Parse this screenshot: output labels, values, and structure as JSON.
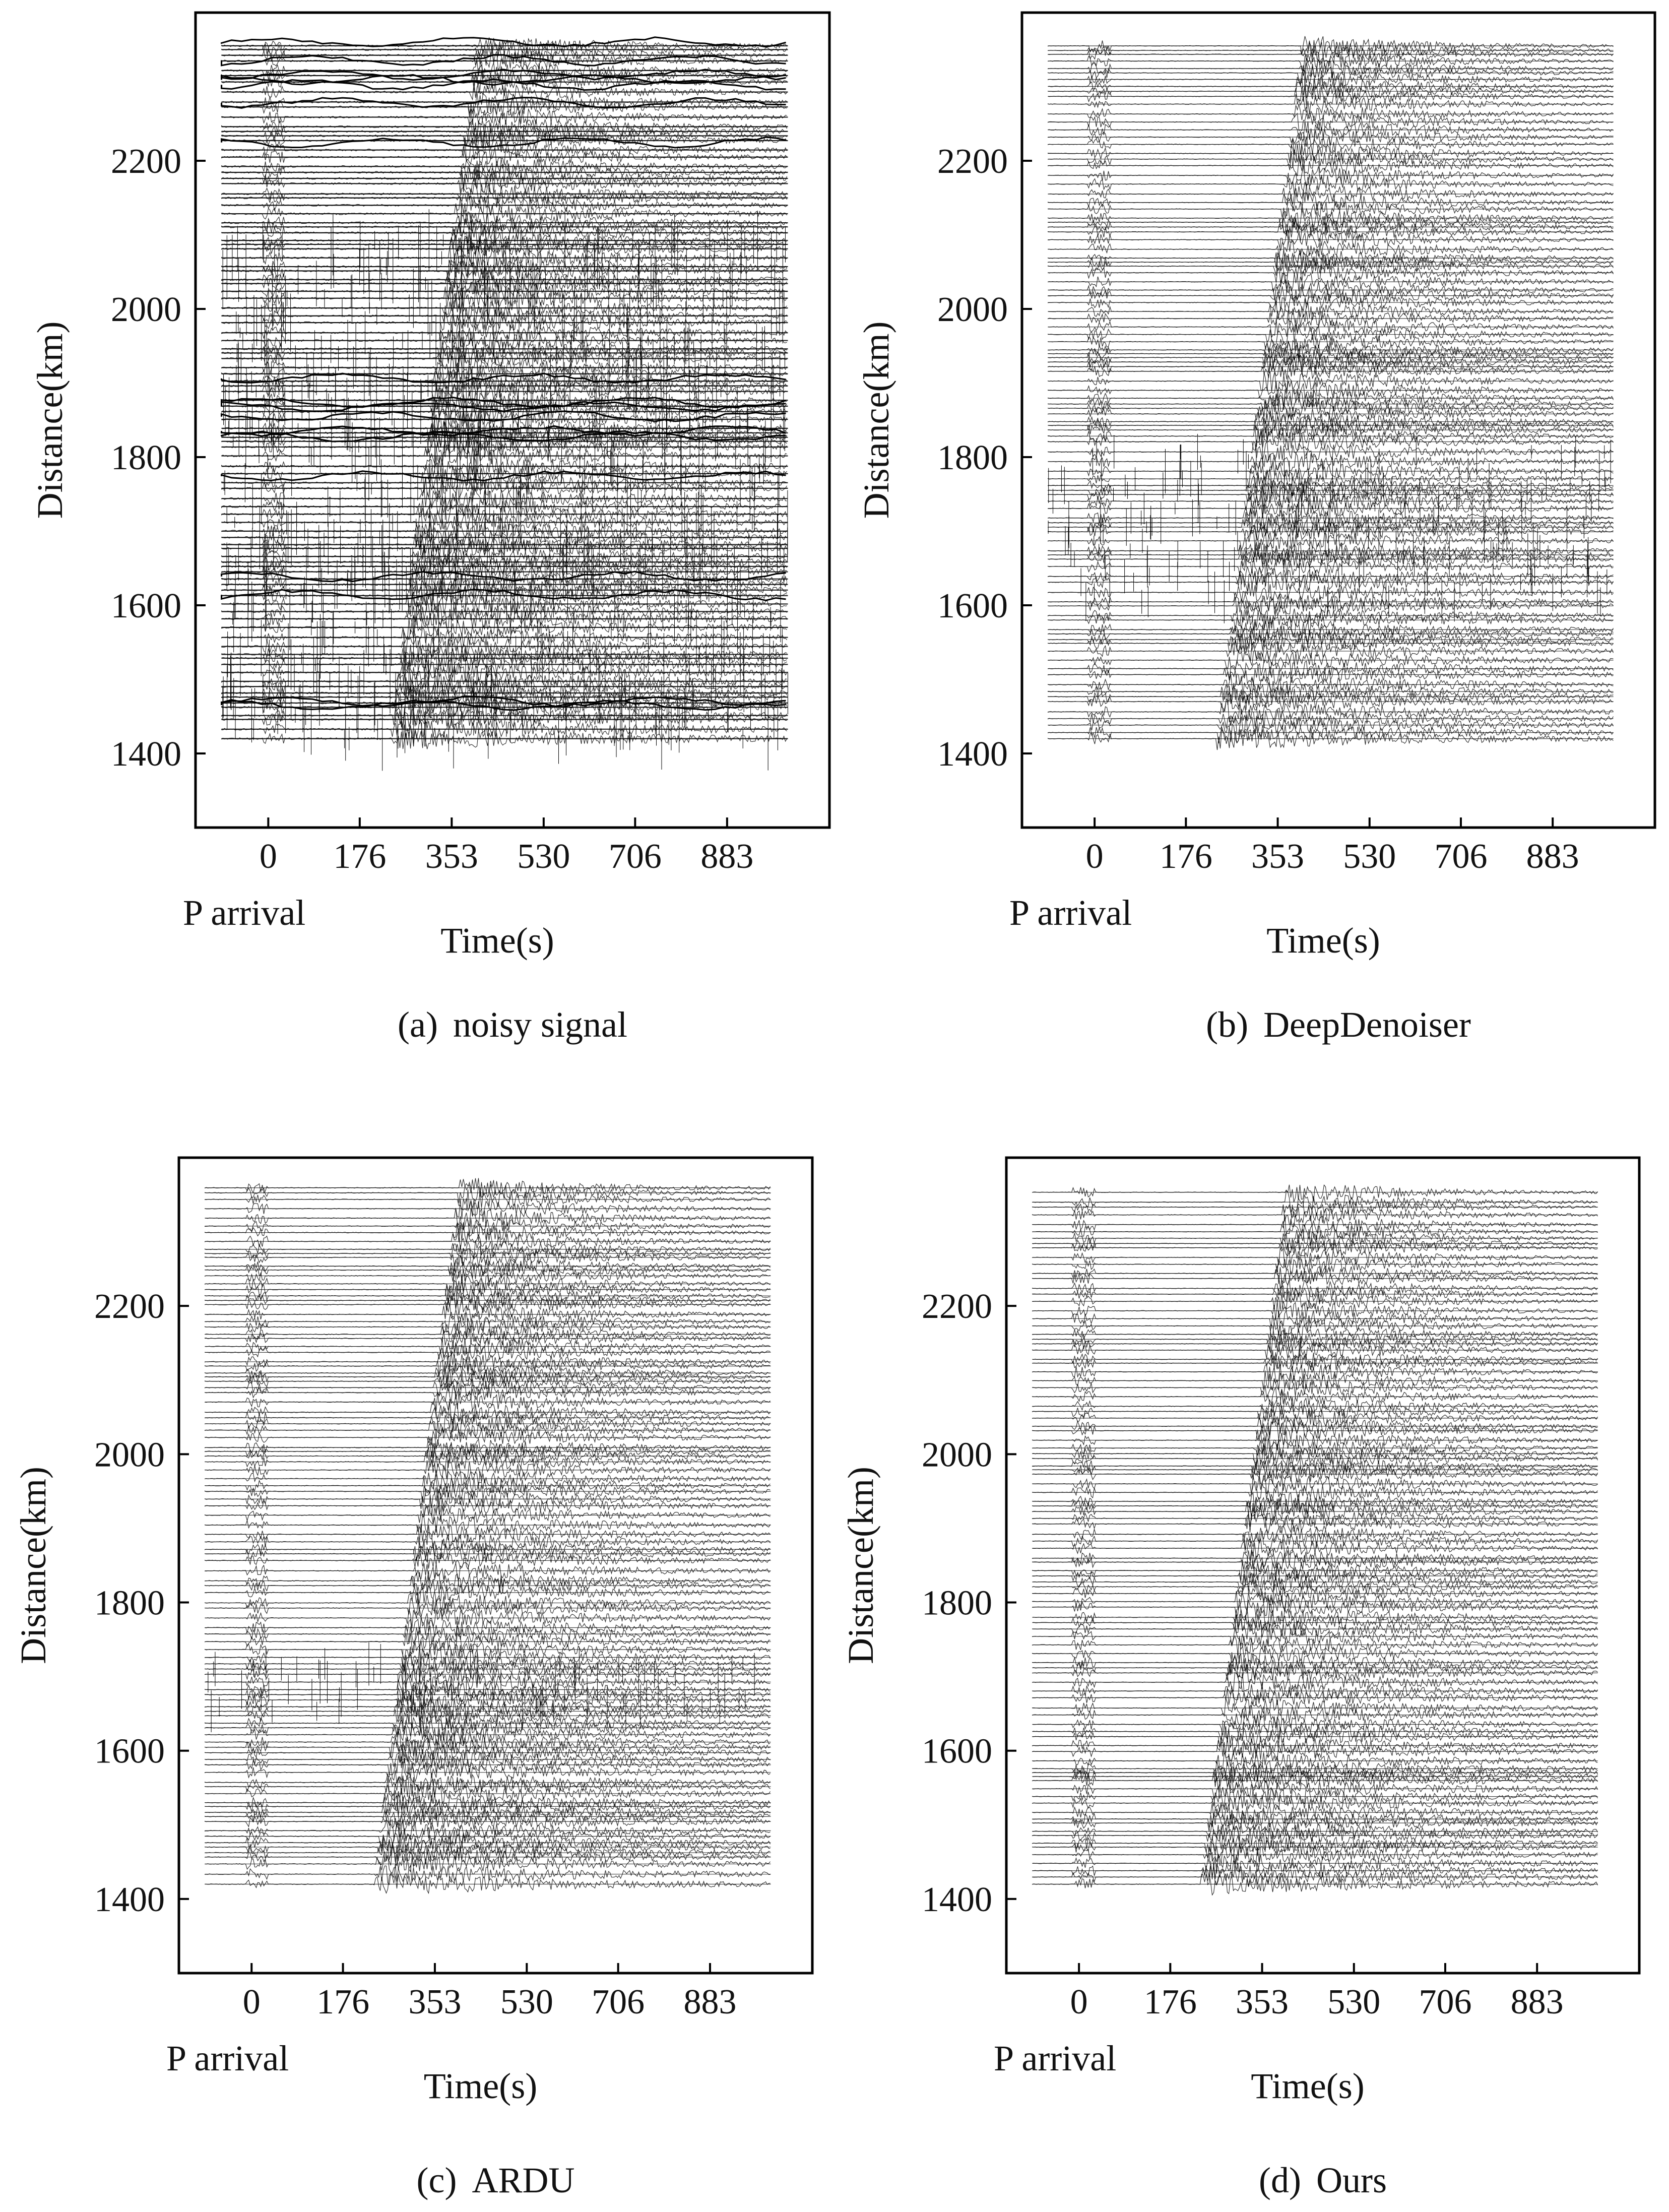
{
  "chart_data": [
    {
      "type": "scatter",
      "panel": "a",
      "title": "noisy signal",
      "caption_label": "(a)",
      "xlabel": "Time(s)",
      "ylabel": "Distance(km)",
      "xticks": [
        0,
        176,
        353,
        530,
        706,
        883
      ],
      "yticks": [
        1400,
        1600,
        1800,
        2000,
        2200
      ],
      "xlim": [
        -140,
        1080
      ],
      "ylim": [
        1300,
        2400
      ],
      "p_label": "P arrival",
      "trace_range_km": [
        1420,
        2360
      ],
      "trace_time_range_s": [
        -90,
        1000
      ],
      "p_arrival_time_s": 10,
      "s_arrival_s": {
        "km1420": 235,
        "km2360": 400
      },
      "noise_level": 1.0,
      "spike_zone_km": [
        1380,
        2100
      ]
    },
    {
      "type": "scatter",
      "panel": "b",
      "title": "DeepDenoiser",
      "caption_label": "(b)",
      "xlabel": "Time(s)",
      "ylabel": "Distance(km)",
      "xticks": [
        0,
        176,
        353,
        530,
        706,
        883
      ],
      "yticks": [
        1400,
        1600,
        1800,
        2000,
        2200
      ],
      "xlim": [
        -140,
        1080
      ],
      "ylim": [
        1300,
        2400
      ],
      "p_label": "P arrival",
      "trace_range_km": [
        1420,
        2360
      ],
      "trace_time_range_s": [
        -90,
        1000
      ],
      "p_arrival_time_s": 10,
      "s_arrival_s": {
        "km1420": 235,
        "km2360": 400
      },
      "noise_level": 0.2,
      "spike_zone_km": [
        1600,
        1820
      ]
    },
    {
      "type": "scatter",
      "panel": "c",
      "title": "ARDU",
      "caption_label": "(c)",
      "xlabel": "Time(s)",
      "ylabel": "Distance(km)",
      "xticks": [
        0,
        176,
        353,
        530,
        706,
        883
      ],
      "yticks": [
        1400,
        1600,
        1800,
        2000,
        2200
      ],
      "xlim": [
        -140,
        1080
      ],
      "ylim": [
        1300,
        2400
      ],
      "p_label": "P arrival",
      "trace_range_km": [
        1420,
        2360
      ],
      "trace_time_range_s": [
        -90,
        1000
      ],
      "p_arrival_time_s": 10,
      "s_arrival_s": {
        "km1420": 235,
        "km2360": 400
      },
      "noise_level": 0.25,
      "spike_zone_km": [
        1650,
        1720
      ]
    },
    {
      "type": "scatter",
      "panel": "d",
      "title": "Ours",
      "caption_label": "(d)",
      "xlabel": "Time(s)",
      "ylabel": "Distance(km)",
      "xticks": [
        0,
        176,
        353,
        530,
        706,
        883
      ],
      "yticks": [
        1400,
        1600,
        1800,
        2000,
        2200
      ],
      "xlim": [
        -140,
        1080
      ],
      "ylim": [
        1300,
        2400
      ],
      "p_label": "P arrival",
      "trace_range_km": [
        1420,
        2360
      ],
      "trace_time_range_s": [
        -90,
        1000
      ],
      "p_arrival_time_s": 10,
      "s_arrival_s": {
        "km1420": 235,
        "km2360": 400
      },
      "noise_level": 0.15,
      "spike_zone_km": [
        0,
        0
      ]
    }
  ]
}
